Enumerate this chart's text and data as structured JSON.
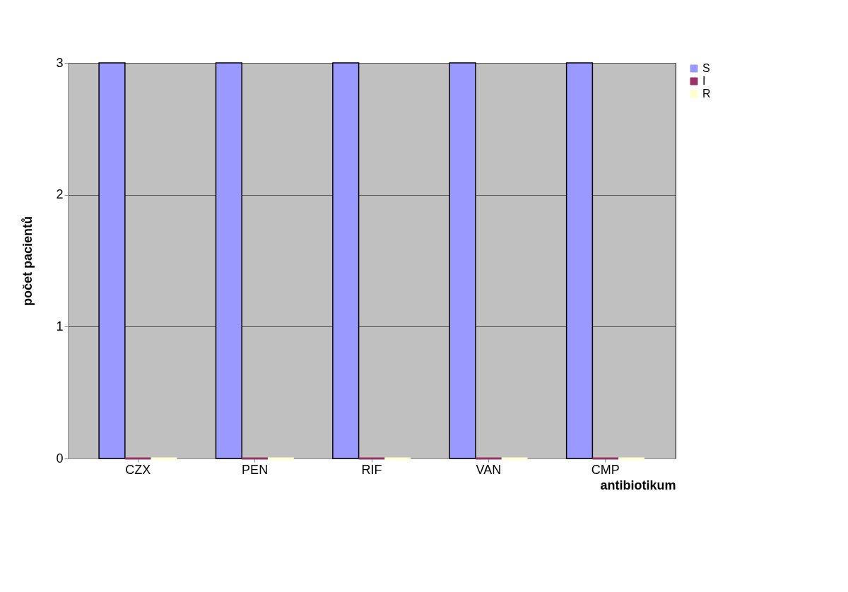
{
  "chart_data": {
    "type": "bar",
    "xlabel": "antibiotikum",
    "ylabel": "počet pacientů",
    "categories": [
      "CZX",
      "PEN",
      "RIF",
      "VAN",
      "CMP"
    ],
    "series": [
      {
        "name": "S",
        "color": "#9999ff",
        "values": [
          3,
          3,
          3,
          3,
          3
        ]
      },
      {
        "name": "I",
        "color": "#993366",
        "values": [
          0,
          0,
          0,
          0,
          0
        ]
      },
      {
        "name": "R",
        "color": "#ffffcc",
        "values": [
          0,
          0,
          0,
          0,
          0
        ]
      }
    ],
    "ylim": [
      0,
      3
    ],
    "yticks": [
      0,
      1,
      2,
      3
    ],
    "grid": "y",
    "legend": "right"
  }
}
